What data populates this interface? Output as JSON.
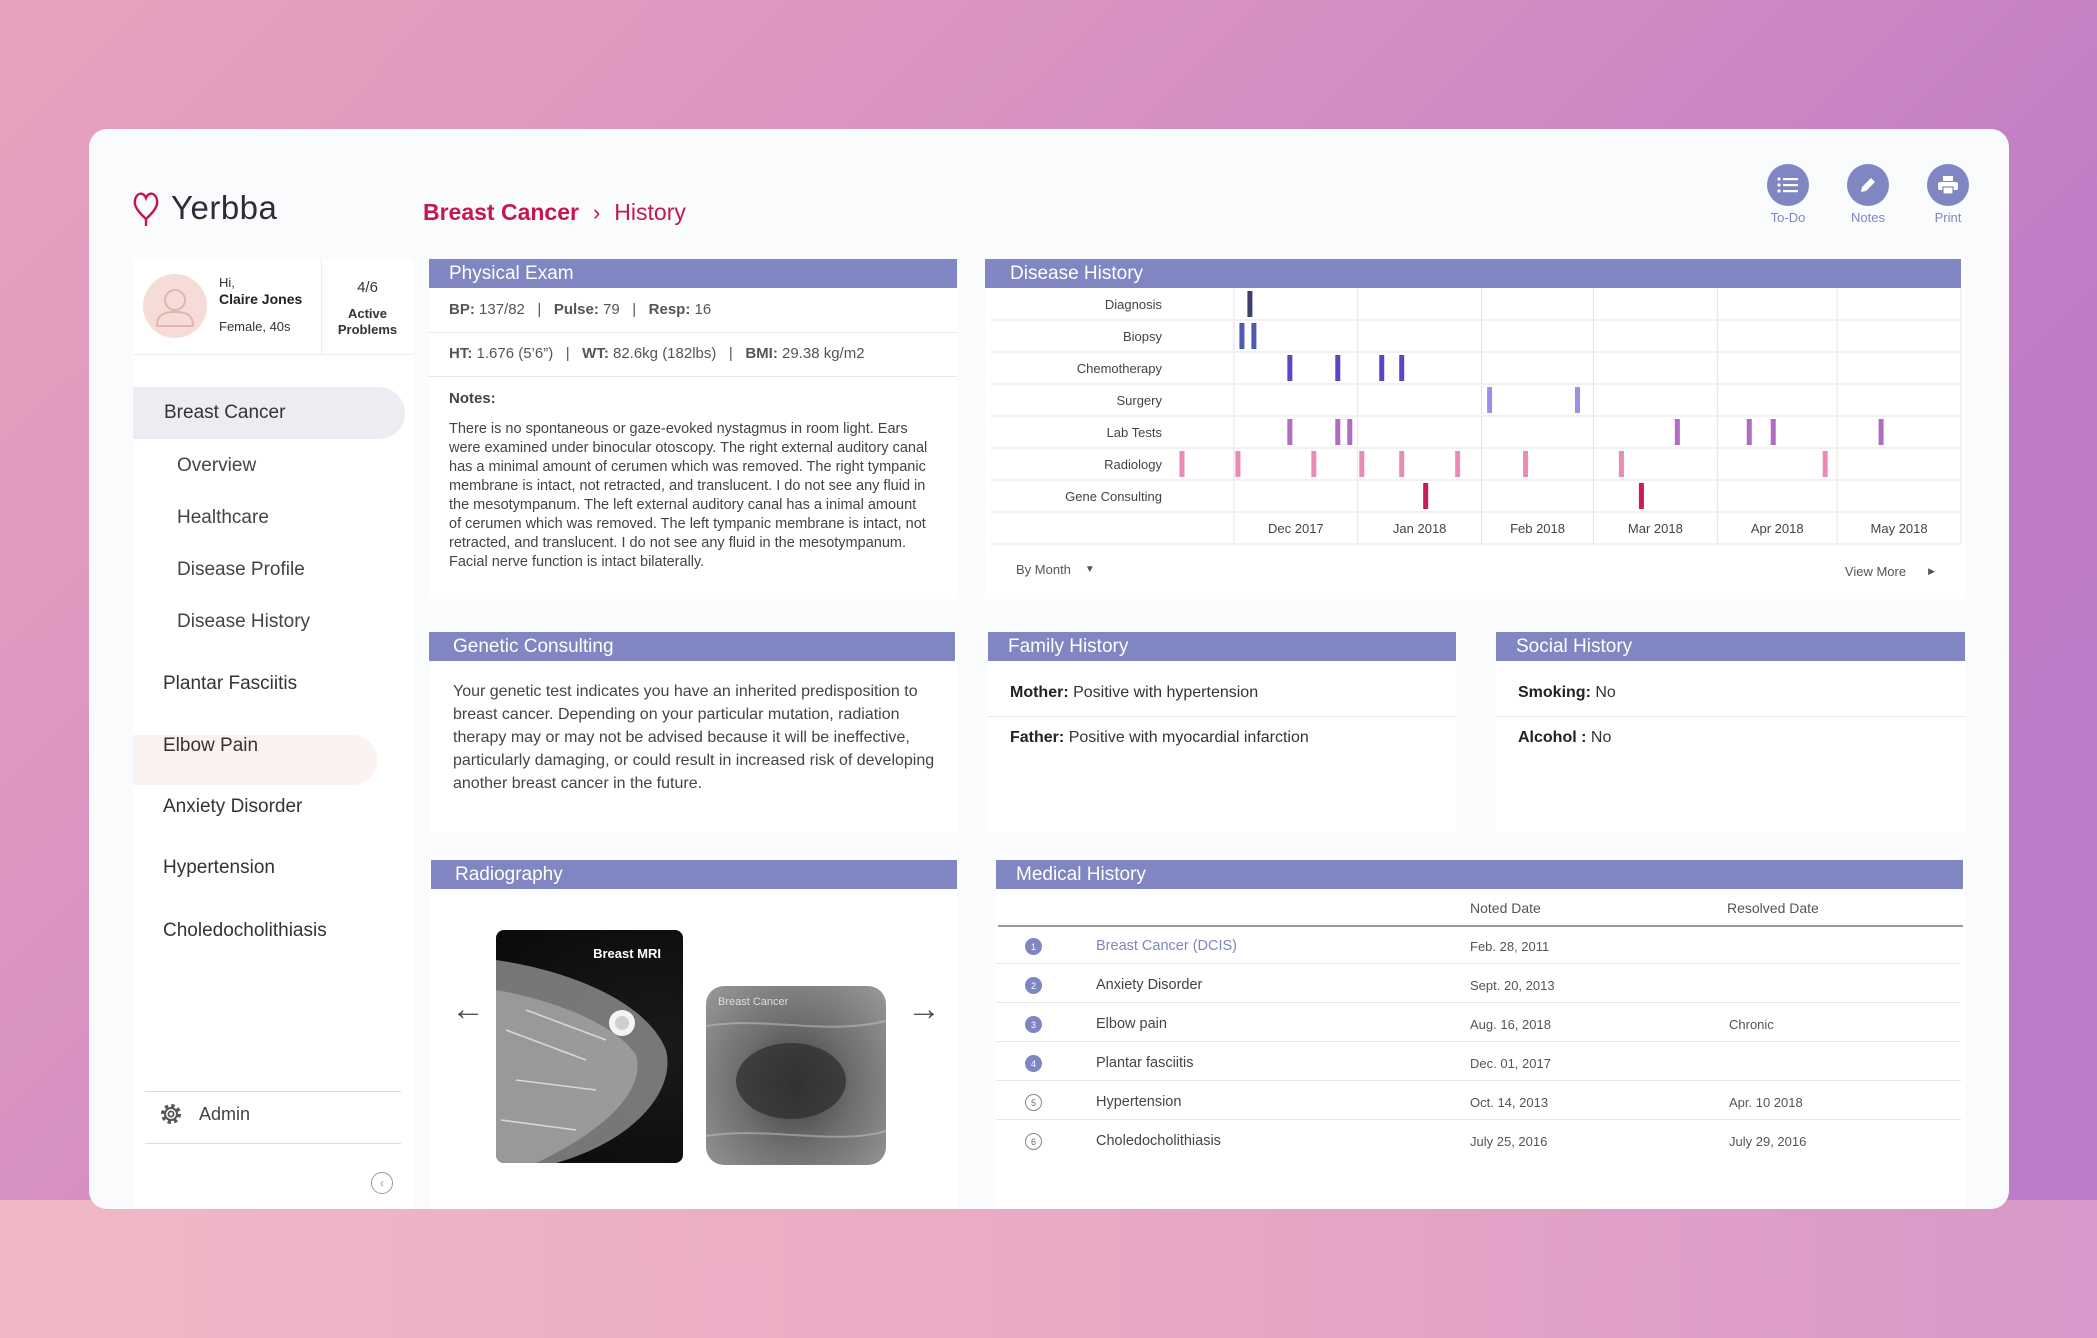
{
  "app": {
    "logo_text": "Yerbba"
  },
  "breadcrumb": {
    "parent": "Breast Cancer",
    "current": "History"
  },
  "actions": [
    {
      "label": "To-Do",
      "icon": "list-icon"
    },
    {
      "label": "Notes",
      "icon": "pencil-icon"
    },
    {
      "label": "Print",
      "icon": "printer-icon"
    }
  ],
  "user": {
    "greeting": "Hi,",
    "name": "Claire Jones",
    "info": "Female, 40s",
    "active_count": "4/6",
    "active_label_1": "Active",
    "active_label_2": "Problems"
  },
  "sidebar": {
    "active_problem": "Breast Cancer",
    "sub_items": [
      "Overview",
      "Healthcare",
      "Disease Profile",
      "Disease History"
    ],
    "problems": [
      "Plantar Fasciitis",
      "Elbow Pain",
      "Anxiety Disorder",
      "Hypertension",
      "Choledocholithiasis"
    ],
    "admin_label": "Admin"
  },
  "physical_exam": {
    "title": "Physical Exam",
    "bp_label": "BP:",
    "bp": "137/82",
    "pulse_label": "Pulse:",
    "pulse": "79",
    "resp_label": "Resp:",
    "resp": "16",
    "ht_label": "HT:",
    "ht": "1.676 (5’6”)",
    "wt_label": "WT:",
    "wt": "82.6kg (182lbs)",
    "bmi_label": "BMI:",
    "bmi": "29.38 kg/m2",
    "separator": "|",
    "notes_label": "Notes:",
    "notes": "There is no spontaneous or gaze-evoked nystagmus in room light. Ears were examined under binocular otoscopy. The right external auditory canal has a minimal amount of cerumen which was removed. The right tympanic membrane is intact, not retracted, and translucent. I do not see any fluid in the mesotympanum. The left external auditory canal has a inimal amount of cerumen which was removed. The left tympanic membrane is intact, not retracted, and translucent. I do not see any fluid in the mesotympanum. Facial nerve function is intact bilaterally."
  },
  "disease_history": {
    "title": "Disease History",
    "period_select": "By Month",
    "view_more": "View More"
  },
  "chart_data": {
    "type": "timeline",
    "rows": [
      "Diagnosis",
      "Biopsy",
      "Chemotherapy",
      "Surgery",
      "Lab Tests",
      "Radiology",
      "Gene Consulting"
    ],
    "x_ticks": [
      "Dec 2017",
      "Jan 2018",
      "Feb 2018",
      "Mar 2018",
      "Apr 2018",
      "May 2018"
    ],
    "x_range": [
      "2017-11-15",
      "2018-06-01"
    ],
    "row_colors": {
      "Diagnosis": "#3f3f6e",
      "Biopsy": "#4f5bb0",
      "Chemotherapy": "#5a45c9",
      "Surgery": "#9e8ee6",
      "Lab Tests": "#b06bc4",
      "Radiology": "#e98bb5",
      "Gene Consulting": "#c81c5c"
    },
    "events": [
      {
        "row": "Diagnosis",
        "dates": [
          "2017-12-05"
        ]
      },
      {
        "row": "Biopsy",
        "dates": [
          "2017-12-03",
          "2017-12-06"
        ]
      },
      {
        "row": "Chemotherapy",
        "dates": [
          "2017-12-15",
          "2017-12-27",
          "2018-01-07",
          "2018-01-12"
        ]
      },
      {
        "row": "Surgery",
        "dates": [
          "2018-02-03",
          "2018-02-25"
        ]
      },
      {
        "row": "Lab Tests",
        "dates": [
          "2017-12-15",
          "2017-12-27",
          "2017-12-30",
          "2018-03-22",
          "2018-04-09",
          "2018-04-15",
          "2018-05-12"
        ]
      },
      {
        "row": "Radiology",
        "dates": [
          "2017-11-18",
          "2017-12-02",
          "2017-12-21",
          "2018-01-02",
          "2018-01-12",
          "2018-01-26",
          "2018-02-12",
          "2018-03-08",
          "2018-04-28"
        ]
      },
      {
        "row": "Gene Consulting",
        "dates": [
          "2018-01-18",
          "2018-03-13"
        ]
      }
    ]
  },
  "genetic": {
    "title": "Genetic Consulting",
    "text": "Your genetic test indicates you have an inherited predisposition to breast cancer. Depending on your particular mutation, radiation therapy may or may not be advised because it will be ineffective, particularly damaging, or could result in increased risk of developing another breast cancer in the future."
  },
  "family": {
    "title": "Family History",
    "mother_label": "Mother:",
    "mother": "Positive with hypertension",
    "father_label": "Father:",
    "father": "Positive with myocardial infarction"
  },
  "social": {
    "title": "Social History",
    "smoking_label": "Smoking:",
    "smoking": "No",
    "alcohol_label": "Alcohol :",
    "alcohol": "No"
  },
  "radiography": {
    "title": "Radiography",
    "image1_label": "Breast MRI",
    "image2_label": "Breast Cancer"
  },
  "medical_history": {
    "title": "Medical History",
    "col_noted": "Noted Date",
    "col_resolved": "Resolved Date",
    "rows": [
      {
        "num": "1",
        "name": "Breast Cancer (DCIS)",
        "noted": "Feb. 28, 2011",
        "resolved": ""
      },
      {
        "num": "2",
        "name": "Anxiety Disorder",
        "noted": "Sept. 20, 2013",
        "resolved": ""
      },
      {
        "num": "3",
        "name": "Elbow pain",
        "noted": "Aug. 16, 2018",
        "resolved": "Chronic"
      },
      {
        "num": "4",
        "name": "Plantar fasciitis",
        "noted": "Dec. 01, 2017",
        "resolved": ""
      },
      {
        "num": "5",
        "name": "Hypertension",
        "noted": "Oct. 14, 2013",
        "resolved": "Apr. 10 2018"
      },
      {
        "num": "6",
        "name": "Choledocholithiasis",
        "noted": "July 25, 2016",
        "resolved": "July 29, 2016"
      }
    ]
  }
}
